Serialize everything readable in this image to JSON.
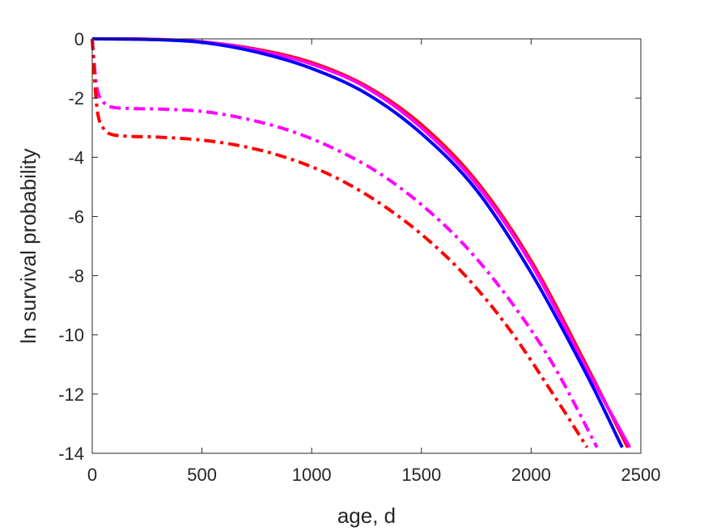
{
  "chart_data": {
    "type": "line",
    "title": "",
    "xlabel": "age, d",
    "ylabel": "ln survival probability",
    "xlim": [
      0,
      2500
    ],
    "ylim": [
      -14,
      0
    ],
    "xticks": [
      0,
      500,
      1000,
      1500,
      2000,
      2500
    ],
    "yticks": [
      0,
      -2,
      -4,
      -6,
      -8,
      -10,
      -12,
      -14
    ],
    "xtick_labels": [
      "0",
      "500",
      "1000",
      "1500",
      "2000",
      "2500"
    ],
    "ytick_labels": [
      "0",
      "-2",
      "-4",
      "-6",
      "-8",
      "-10",
      "-12",
      "-14"
    ],
    "grid": false,
    "legend": null,
    "series": [
      {
        "color": "#ff0000",
        "style": "solid",
        "x": [
          0,
          250,
          500,
          750,
          1000,
          1250,
          1500,
          1750,
          2000,
          2250,
          2440
        ],
        "y": [
          0,
          -0.01,
          -0.1,
          -0.35,
          -0.8,
          -1.6,
          -2.9,
          -4.8,
          -7.5,
          -11.0,
          -13.8
        ]
      },
      {
        "color": "#ff00ff",
        "style": "solid",
        "x": [
          0,
          250,
          500,
          750,
          1000,
          1250,
          1500,
          1750,
          2000,
          2250,
          2450
        ],
        "y": [
          0,
          -0.01,
          -0.1,
          -0.38,
          -0.85,
          -1.65,
          -3.0,
          -4.9,
          -7.6,
          -11.1,
          -13.8
        ]
      },
      {
        "color": "#0000ff",
        "style": "solid",
        "x": [
          0,
          250,
          500,
          750,
          1000,
          1250,
          1500,
          1750,
          2000,
          2250,
          2415
        ],
        "y": [
          0,
          -0.02,
          -0.12,
          -0.45,
          -1.0,
          -1.85,
          -3.2,
          -5.1,
          -7.9,
          -11.3,
          -13.8
        ]
      },
      {
        "color": "#ff00ff",
        "style": "dashdot",
        "x": [
          0,
          15,
          30,
          60,
          100,
          200,
          300,
          500,
          700,
          900,
          1100,
          1300,
          1500,
          1700,
          1900,
          2100,
          2300
        ],
        "y": [
          0,
          -1.3,
          -1.9,
          -2.2,
          -2.32,
          -2.36,
          -2.37,
          -2.45,
          -2.7,
          -3.1,
          -3.7,
          -4.5,
          -5.6,
          -7.0,
          -8.8,
          -11.0,
          -13.8
        ]
      },
      {
        "color": "#ff0000",
        "style": "dashdot",
        "x": [
          0,
          15,
          30,
          60,
          100,
          200,
          300,
          500,
          700,
          900,
          1100,
          1300,
          1500,
          1700,
          1900,
          2100,
          2255
        ],
        "y": [
          0,
          -1.8,
          -2.7,
          -3.1,
          -3.25,
          -3.3,
          -3.32,
          -3.42,
          -3.65,
          -4.05,
          -4.65,
          -5.5,
          -6.6,
          -8.0,
          -9.8,
          -12.0,
          -13.8
        ]
      }
    ]
  }
}
